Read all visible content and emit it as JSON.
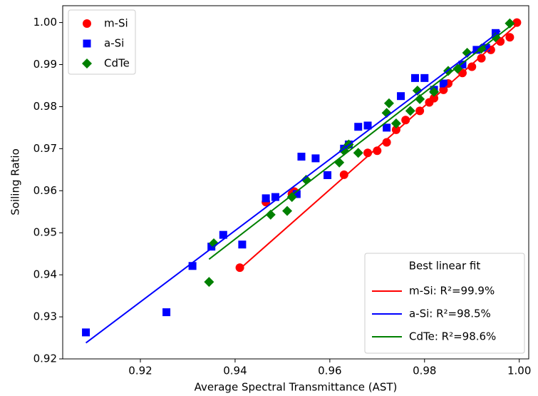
{
  "chart_data": {
    "type": "scatter",
    "xlabel": "Average Spectral Transmittance (AST)",
    "ylabel": "Soiling Ratio",
    "xlim": [
      0.9036,
      1.002
    ],
    "ylim": [
      0.92,
      1.004
    ],
    "xticks": [
      0.92,
      0.94,
      0.96,
      0.98,
      {
        "value": 1.0,
        "label": "1.00"
      }
    ],
    "yticks": [
      0.92,
      0.93,
      0.94,
      0.95,
      0.96,
      0.97,
      0.98,
      0.99,
      {
        "value": 1.0,
        "label": "1.00"
      }
    ],
    "legend": "upper left",
    "series": [
      {
        "name": "m-Si",
        "color": "#ff0000",
        "marker": "o",
        "x": [
          0.941,
          0.9465,
          0.952,
          0.9525,
          0.963,
          0.968,
          0.97,
          0.972,
          0.974,
          0.976,
          0.979,
          0.981,
          0.982,
          0.984,
          0.985,
          0.988,
          0.99,
          0.992,
          0.994,
          0.996,
          0.998,
          0.9995
        ],
        "values": [
          0.9417,
          0.9573,
          0.9592,
          0.9598,
          0.9638,
          0.969,
          0.9695,
          0.9715,
          0.9745,
          0.9768,
          0.979,
          0.981,
          0.982,
          0.984,
          0.9855,
          0.988,
          0.9895,
          0.9915,
          0.9935,
          0.9955,
          0.9965,
          1.0
        ]
      },
      {
        "name": "a-Si",
        "color": "#0000ff",
        "marker": "s",
        "x": [
          0.9085,
          0.9255,
          0.931,
          0.935,
          0.9375,
          0.9415,
          0.9465,
          0.9485,
          0.953,
          0.954,
          0.957,
          0.9595,
          0.963,
          0.964,
          0.966,
          0.968,
          0.972,
          0.975,
          0.978,
          0.98,
          0.982,
          0.984,
          0.988,
          0.991,
          0.993,
          0.995
        ],
        "values": [
          0.9263,
          0.9311,
          0.9421,
          0.9467,
          0.9495,
          0.9472,
          0.9582,
          0.9585,
          0.9592,
          0.9681,
          0.9677,
          0.9637,
          0.97,
          0.971,
          0.9752,
          0.9755,
          0.975,
          0.9825,
          0.9868,
          0.9868,
          0.984,
          0.9855,
          0.99,
          0.9935,
          0.994,
          0.9975
        ]
      },
      {
        "name": "CdTe",
        "color": "#008000",
        "marker": "D",
        "x": [
          0.9345,
          0.9355,
          0.9475,
          0.951,
          0.952,
          0.955,
          0.962,
          0.963,
          0.964,
          0.966,
          0.972,
          0.9725,
          0.974,
          0.977,
          0.979,
          0.9785,
          0.982,
          0.985,
          0.987,
          0.989,
          0.992,
          0.995,
          0.998
        ],
        "values": [
          0.9383,
          0.9475,
          0.9543,
          0.9552,
          0.9585,
          0.9626,
          0.9667,
          0.9695,
          0.971,
          0.969,
          0.9785,
          0.9808,
          0.976,
          0.979,
          0.9818,
          0.9838,
          0.9835,
          0.9885,
          0.989,
          0.9928,
          0.9938,
          0.9965,
          0.9998
        ]
      }
    ],
    "fit_legend_title": "Best linear fit",
    "fit_legend": "lower right",
    "fits": [
      {
        "name": "m-Si: R²=99.9%",
        "color": "#ff0000",
        "x": [
          0.941,
          1.0
        ],
        "values": [
          0.9414,
          1.0
        ]
      },
      {
        "name": "a-Si: R²=98.5%",
        "color": "#0000ff",
        "x": [
          0.9085,
          0.996
        ],
        "values": [
          0.9238,
          0.998
        ]
      },
      {
        "name": "CdTe: R²=98.6%",
        "color": "#008000",
        "x": [
          0.9345,
          0.9985
        ],
        "values": [
          0.9437,
          0.9995
        ]
      }
    ]
  }
}
